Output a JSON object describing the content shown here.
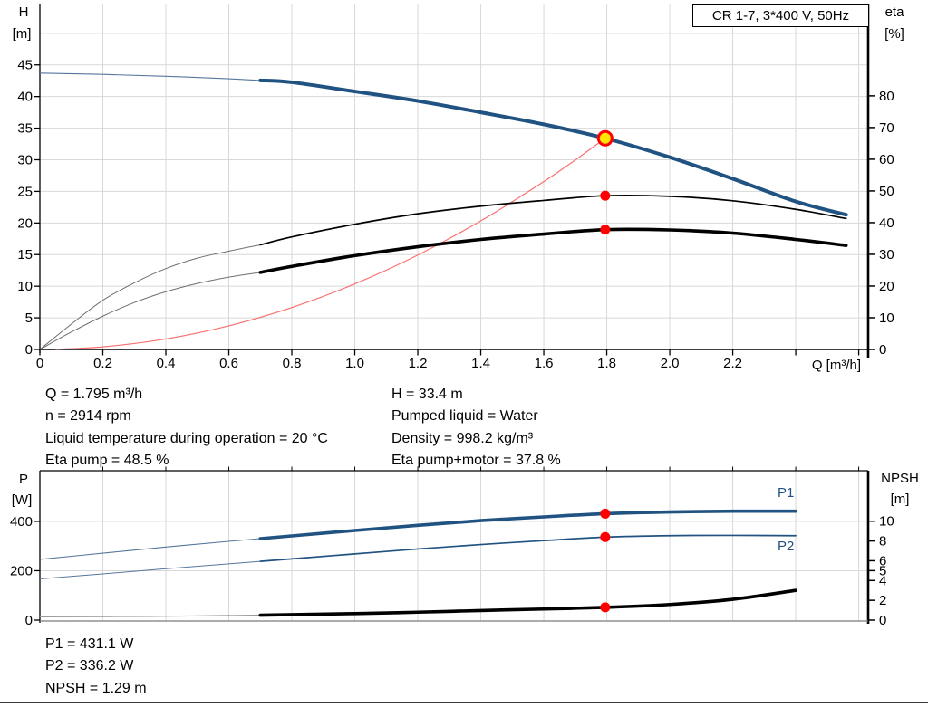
{
  "colors": {
    "curve_blue": "#205282",
    "curve_black": "#000000",
    "system_red": "#fa7070",
    "marker_red": "#fe0000",
    "marker_yellow": "#ffe600",
    "grid": "#d8d8d8",
    "axis": "#000000",
    "frame_gray": "#7a7a7a",
    "lead_blue": "#56779d",
    "lead_black": "#6e6e6e",
    "lead_gray": "#9a9a9a",
    "label_blue": "#205282"
  },
  "title_box": {
    "text": "CR 1-7, 3*400 V, 50Hz"
  },
  "info_top": {
    "left": [
      "Q = 1.795 m³/h",
      "n = 2914 rpm",
      "Liquid temperature during operation = 20 °C",
      "Eta pump = 48.5 %"
    ],
    "right": [
      "H = 33.4 m",
      "Pumped liquid = Water",
      "Density = 998.2 kg/m³",
      "Eta pump+motor = 37.8 %"
    ]
  },
  "info_bottom": [
    "P1 = 431.1 W",
    "P2 = 336.2 W",
    "NPSH = 1.29 m"
  ],
  "chart_data": [
    {
      "type": "line",
      "description": "Pump head H and efficiency eta versus flow Q",
      "x_axis": {
        "label": "Q [m³/h]",
        "min": 0,
        "max": 2.63,
        "tick_values": [
          0,
          0.2,
          0.4,
          0.6,
          0.8,
          1.0,
          1.2,
          1.4,
          1.6,
          1.8,
          2.0,
          2.2
        ],
        "tick_labels": [
          "0",
          "0.2",
          "0.4",
          "0.6",
          "0.8",
          "1.0",
          "1.2",
          "1.4",
          "1.6",
          "1.8",
          "2.0",
          "2.2"
        ],
        "tick_marks": [
          0,
          0.2,
          0.4,
          0.6,
          0.8,
          1.0,
          1.2,
          1.4,
          1.6,
          1.8,
          2.0,
          2.2,
          2.4,
          2.6
        ],
        "grid_values": [
          0.2,
          0.4,
          0.6,
          0.8,
          1.0,
          1.2,
          1.4,
          1.6,
          1.8,
          2.0,
          2.2,
          2.4,
          2.6
        ]
      },
      "left_axis": {
        "name": "H",
        "unit": "[m]",
        "min": 0,
        "max": 54.7,
        "tick_values": [
          0,
          5,
          10,
          15,
          20,
          25,
          30,
          35,
          40,
          45
        ],
        "grid_values": [
          5,
          10,
          15,
          20,
          25,
          30,
          35,
          40,
          45,
          50
        ]
      },
      "right_axis": {
        "name": "eta",
        "unit": "[%]",
        "min": 0,
        "max": 109.1,
        "tick_values": [
          0,
          10,
          20,
          30,
          40,
          50,
          60,
          70,
          80
        ]
      },
      "series": [
        {
          "id": "head-curve",
          "name": "H (pump head)",
          "axis": "left",
          "color": "curve_blue",
          "lead_color": "lead_blue",
          "width": 4,
          "lead_width": 1.1,
          "thick_from": 0.7,
          "points": [
            [
              0,
              43.7
            ],
            [
              0.2,
              43.5
            ],
            [
              0.4,
              43.2
            ],
            [
              0.6,
              42.8
            ],
            [
              0.7,
              42.55
            ],
            [
              0.8,
              42.25
            ],
            [
              1.0,
              40.8
            ],
            [
              1.2,
              39.3
            ],
            [
              1.4,
              37.5
            ],
            [
              1.6,
              35.6
            ],
            [
              1.795,
              33.4
            ],
            [
              2.0,
              30.4
            ],
            [
              2.2,
              27.0
            ],
            [
              2.4,
              23.4
            ],
            [
              2.56,
              21.3
            ]
          ]
        },
        {
          "id": "eta-pump-curve",
          "name": "Eta pump",
          "axis": "right",
          "color": "curve_black",
          "lead_color": "lead_black",
          "width": 1.7,
          "lead_width": 1,
          "thick_from": 0.7,
          "points": [
            [
              0,
              0
            ],
            [
              0.1,
              8
            ],
            [
              0.2,
              15.5
            ],
            [
              0.3,
              21
            ],
            [
              0.4,
              25.5
            ],
            [
              0.5,
              28.8
            ],
            [
              0.6,
              31
            ],
            [
              0.7,
              33
            ],
            [
              0.8,
              35.5
            ],
            [
              1.0,
              39.5
            ],
            [
              1.2,
              42.8
            ],
            [
              1.4,
              45.2
            ],
            [
              1.6,
              47.0
            ],
            [
              1.795,
              48.5
            ],
            [
              2.0,
              48.3
            ],
            [
              2.2,
              46.9
            ],
            [
              2.4,
              44.2
            ],
            [
              2.56,
              41.3
            ]
          ]
        },
        {
          "id": "eta-pump-motor-curve",
          "name": "Eta pump+motor",
          "axis": "right",
          "color": "curve_black",
          "lead_color": "lead_black",
          "width": 3.6,
          "lead_width": 1,
          "thick_from": 0.7,
          "points": [
            [
              0,
              0
            ],
            [
              0.1,
              5.5
            ],
            [
              0.2,
              10.5
            ],
            [
              0.3,
              14.8
            ],
            [
              0.4,
              18.2
            ],
            [
              0.5,
              20.8
            ],
            [
              0.6,
              22.8
            ],
            [
              0.7,
              24.3
            ],
            [
              0.8,
              26.2
            ],
            [
              1.0,
              29.6
            ],
            [
              1.2,
              32.4
            ],
            [
              1.4,
              34.7
            ],
            [
              1.6,
              36.4
            ],
            [
              1.795,
              37.8
            ],
            [
              2.0,
              37.7
            ],
            [
              2.2,
              36.7
            ],
            [
              2.4,
              34.7
            ],
            [
              2.56,
              32.8
            ]
          ]
        },
        {
          "id": "system-curve",
          "name": "System curve",
          "axis": "left",
          "color": "system_red",
          "width": 1.2,
          "points": [
            [
              0.05,
              0.03
            ],
            [
              0.2,
              0.41
            ],
            [
              0.4,
              1.66
            ],
            [
              0.6,
              3.73
            ],
            [
              0.8,
              6.63
            ],
            [
              1.0,
              10.37
            ],
            [
              1.2,
              14.93
            ],
            [
              1.4,
              20.33
            ],
            [
              1.6,
              26.55
            ],
            [
              1.7,
              29.97
            ],
            [
              1.795,
              33.4
            ]
          ]
        }
      ],
      "markers": [
        {
          "id": "duty-point",
          "shape": "duty",
          "q": 1.795,
          "value": 33.4,
          "axis": "left"
        },
        {
          "id": "eta-pump-point",
          "shape": "dot",
          "q": 1.795,
          "value": 48.5,
          "axis": "right"
        },
        {
          "id": "eta-pump-motor-point",
          "shape": "dot",
          "q": 1.795,
          "value": 37.8,
          "axis": "right"
        }
      ]
    },
    {
      "type": "line",
      "description": "Power P1/P2 and NPSH versus flow Q",
      "x_axis": {
        "min": 0,
        "max": 2.63,
        "tick_marks": [
          0.2,
          0.4,
          0.6,
          0.8,
          1.0,
          1.2,
          1.4,
          1.6,
          1.8,
          2.0,
          2.2,
          2.4,
          2.6
        ],
        "grid_values": [
          0.2,
          0.4,
          0.6,
          0.8,
          1.0,
          1.2,
          1.4,
          1.6,
          1.8,
          2.0,
          2.2,
          2.4,
          2.6
        ]
      },
      "left_axis": {
        "name": "P",
        "unit": "[W]",
        "min": 0,
        "max": 605,
        "tick_values": [
          0,
          200,
          400
        ],
        "grid_values": [
          200,
          400
        ]
      },
      "right_axis": {
        "name": "NPSH",
        "unit": "[m]",
        "min": 0,
        "max": 15.1,
        "tick_values": [
          0,
          2,
          4,
          5,
          6,
          8,
          10
        ]
      },
      "series": [
        {
          "id": "p1-curve",
          "name": "P1",
          "axis": "left",
          "color": "curve_blue",
          "lead_color": "lead_blue",
          "width": 3.6,
          "lead_width": 1.1,
          "thick_from": 0.7,
          "points": [
            [
              0,
              246
            ],
            [
              0.2,
              271
            ],
            [
              0.4,
              296
            ],
            [
              0.6,
              319
            ],
            [
              0.7,
              330
            ],
            [
              0.8,
              341
            ],
            [
              1.0,
              363
            ],
            [
              1.2,
              384
            ],
            [
              1.4,
              403
            ],
            [
              1.6,
              418
            ],
            [
              1.795,
              431
            ],
            [
              2.0,
              438
            ],
            [
              2.2,
              441
            ],
            [
              2.4,
              441
            ]
          ]
        },
        {
          "id": "p2-curve",
          "name": "P2",
          "axis": "left",
          "color": "curve_blue",
          "lead_color": "lead_blue",
          "width": 1.7,
          "lead_width": 1,
          "thick_from": 0.7,
          "points": [
            [
              0,
              167
            ],
            [
              0.2,
              187
            ],
            [
              0.4,
              208
            ],
            [
              0.6,
              228
            ],
            [
              0.7,
              238
            ],
            [
              0.8,
              248
            ],
            [
              1.0,
              268
            ],
            [
              1.2,
              288
            ],
            [
              1.4,
              306
            ],
            [
              1.6,
              322
            ],
            [
              1.795,
              336
            ],
            [
              2.0,
              342
            ],
            [
              2.2,
              343
            ],
            [
              2.4,
              342
            ]
          ]
        },
        {
          "id": "npsh-curve",
          "name": "NPSH",
          "axis": "right",
          "color": "curve_black",
          "lead_color": "lead_gray",
          "width": 3.6,
          "lead_width": 1.2,
          "thick_from": 0.7,
          "points": [
            [
              0,
              0.33
            ],
            [
              0.35,
              0.38
            ],
            [
              0.7,
              0.5
            ],
            [
              1.0,
              0.66
            ],
            [
              1.2,
              0.8
            ],
            [
              1.4,
              0.97
            ],
            [
              1.6,
              1.12
            ],
            [
              1.795,
              1.29
            ],
            [
              2.0,
              1.58
            ],
            [
              2.2,
              2.1
            ],
            [
              2.4,
              3.0
            ]
          ]
        }
      ],
      "markers": [
        {
          "id": "p1-point",
          "shape": "dot",
          "q": 1.795,
          "value": 431.1,
          "axis": "left"
        },
        {
          "id": "p2-point",
          "shape": "dot",
          "q": 1.795,
          "value": 336.2,
          "axis": "left"
        },
        {
          "id": "npsh-point",
          "shape": "dot",
          "q": 1.795,
          "value": 1.29,
          "axis": "right"
        }
      ]
    }
  ]
}
